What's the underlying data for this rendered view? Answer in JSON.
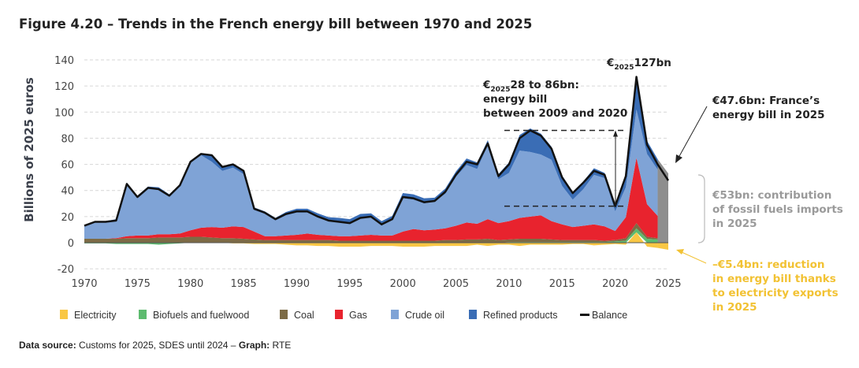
{
  "title": "Figure 4.20 – Trends in the French energy bill between 1970 and 2025",
  "footer": {
    "source_label": "Data source:",
    "source_text": " Customs for 2025, SDES until 2024 – ",
    "graph_label": "Graph:",
    "graph_text": " RTE"
  },
  "annotations": {
    "peak_prefix": "€",
    "peak_sub": "2025",
    "peak_value": "127bn",
    "range_prefix": "€",
    "range_sub": "2025",
    "range_line1": "28 to 86bn:",
    "range_line2": "energy bill",
    "range_line3": "between 2009 and 2020",
    "bill_line1": "€47.6bn: France’s",
    "bill_line2": "energy bill in 2025",
    "fossil_line1": "€53bn: contribution",
    "fossil_line2": "of fossil fuels imports",
    "fossil_line3": "in 2025",
    "elec_line1": "–€5.4bn: reduction",
    "elec_line2": "in energy bill thanks",
    "elec_line3": "to electricity exports",
    "elec_line4": "in 2025"
  },
  "chart_data": {
    "type": "area",
    "ylabel": "Billions of 2025 euros",
    "xlabel": "",
    "xlim": [
      1970,
      2025
    ],
    "ylim": [
      -20,
      140
    ],
    "xticks": [
      1970,
      1975,
      1980,
      1985,
      1990,
      1995,
      2000,
      2005,
      2010,
      2015,
      2020,
      2025
    ],
    "yticks": [
      -20,
      0,
      20,
      40,
      60,
      80,
      100,
      120,
      140
    ],
    "grid": true,
    "legend_position": "bottom",
    "years": [
      1970,
      1971,
      1972,
      1973,
      1974,
      1975,
      1976,
      1977,
      1978,
      1979,
      1980,
      1981,
      1982,
      1983,
      1984,
      1985,
      1986,
      1987,
      1988,
      1989,
      1990,
      1991,
      1992,
      1993,
      1994,
      1995,
      1996,
      1997,
      1998,
      1999,
      2000,
      2001,
      2002,
      2003,
      2004,
      2005,
      2006,
      2007,
      2008,
      2009,
      2010,
      2011,
      2012,
      2013,
      2014,
      2015,
      2016,
      2017,
      2018,
      2019,
      2020,
      2021,
      2022,
      2023,
      2024
    ],
    "series": [
      {
        "name": "Electricity",
        "color": "#f9c744",
        "values": [
          0,
          0,
          0,
          0,
          0,
          0,
          0,
          0,
          0,
          0,
          0,
          0,
          0,
          0,
          -0.5,
          -0.5,
          -1,
          -1,
          -1,
          -1.5,
          -2,
          -2,
          -2.5,
          -2.5,
          -3,
          -3,
          -3,
          -2.5,
          -2.5,
          -2.5,
          -3,
          -3,
          -3,
          -2.5,
          -2.5,
          -2.5,
          -2.5,
          -1.5,
          -2.5,
          -1.5,
          -1.5,
          -2.5,
          -1.5,
          -1.5,
          -1.5,
          -1.5,
          -1,
          -1,
          -2,
          -1.5,
          -1,
          -1.5,
          8,
          -3,
          -4
        ]
      },
      {
        "name": "Biofuels and fuelwood",
        "color": "#5dbb6f",
        "values": [
          -0.5,
          -0.5,
          -0.5,
          -1,
          -1,
          -1,
          -1,
          -1.5,
          -1,
          -0.5,
          0,
          0,
          0,
          0,
          0,
          0,
          0,
          0,
          0,
          0,
          0,
          0,
          0,
          0,
          0,
          0,
          0,
          0,
          0,
          0,
          0,
          0,
          0,
          0,
          0,
          0,
          0,
          0,
          0,
          0,
          0.5,
          0.5,
          0.5,
          0.5,
          0.5,
          0.5,
          0.5,
          0.5,
          0.5,
          0.5,
          1,
          1.5,
          3,
          3,
          2.5
        ]
      },
      {
        "name": "Coal",
        "color": "#7d6b45",
        "values": [
          3,
          3,
          3,
          3,
          3.5,
          3.5,
          3.5,
          4,
          4,
          4,
          4.5,
          4.5,
          4,
          3.5,
          3.5,
          3,
          2.5,
          2,
          2,
          2,
          2,
          2,
          2,
          2,
          1.5,
          1.5,
          1.5,
          1.5,
          1.5,
          1.5,
          1.5,
          1.5,
          1.5,
          1.5,
          2,
          2,
          2.5,
          2.5,
          3,
          2,
          2,
          2.5,
          2.5,
          2.5,
          2,
          1.5,
          1.5,
          1.5,
          1.5,
          1,
          1,
          2,
          4,
          1.5,
          1
        ]
      },
      {
        "name": "Gas",
        "color": "#e8232e",
        "values": [
          0,
          0,
          0,
          0.5,
          1.5,
          2,
          2,
          2.5,
          2.5,
          3,
          5,
          7,
          8,
          8,
          9,
          9,
          6,
          3,
          3,
          3.5,
          4,
          5,
          4,
          3.5,
          3.5,
          3.5,
          4,
          4.5,
          4,
          4,
          7,
          9,
          8,
          8.5,
          9,
          11,
          13,
          12,
          15,
          13,
          14,
          16,
          17,
          18,
          14,
          12,
          10,
          11,
          12,
          11,
          7,
          16,
          50,
          25,
          17
        ]
      },
      {
        "name": "Crude oil",
        "color": "#7fa3d6",
        "values": [
          10,
          13,
          13,
          13.5,
          40,
          29.5,
          36.5,
          34.5,
          29.5,
          36.5,
          51.5,
          55.5,
          50,
          43.5,
          45,
          40.5,
          16.5,
          17,
          12,
          15.5,
          17,
          16,
          13.5,
          11,
          11,
          10,
          13.5,
          13.5,
          8,
          12,
          25.5,
          22.5,
          20.5,
          21.5,
          26.5,
          37.5,
          44,
          42,
          56.5,
          33.5,
          37,
          51.5,
          49.5,
          46.5,
          47,
          29.5,
          21,
          28,
          38,
          37,
          15,
          23,
          37,
          38.5,
          35.5
        ]
      },
      {
        "name": "Refined products",
        "color": "#3a6db5",
        "values": [
          0.5,
          0.5,
          0.5,
          1,
          1,
          1,
          1,
          1.5,
          1,
          1,
          1,
          1,
          5,
          3,
          3,
          3,
          2,
          2,
          2,
          2.5,
          3,
          3,
          3,
          3,
          3,
          3,
          3,
          3,
          3,
          3,
          4,
          4,
          4,
          3,
          4,
          4,
          5,
          5,
          4,
          4,
          8,
          12,
          18,
          16,
          10,
          8,
          6,
          6,
          5,
          4,
          5,
          10,
          25,
          10,
          8
        ]
      }
    ],
    "balance": {
      "name": "Balance",
      "color": "#111111",
      "values": [
        13,
        16,
        16,
        17,
        45,
        35,
        42,
        41,
        36,
        44,
        62,
        68,
        67,
        58,
        60,
        55,
        26,
        23,
        18,
        22,
        24,
        24,
        20,
        17,
        16,
        15,
        19,
        20,
        14,
        18,
        35,
        34,
        31,
        32,
        39,
        52,
        62,
        60,
        76,
        51,
        60,
        80,
        86,
        82,
        72,
        50,
        38,
        46,
        55,
        52,
        28,
        51,
        127,
        75,
        60,
        47.6
      ],
      "years_extra": [
        2025
      ]
    },
    "year_2025": {
      "fossil_fuels": 53,
      "electricity": -5.4,
      "balance": 47.6,
      "fossil_color": "#8e8e8e"
    },
    "range_2009_2020": [
      28,
      86
    ]
  }
}
